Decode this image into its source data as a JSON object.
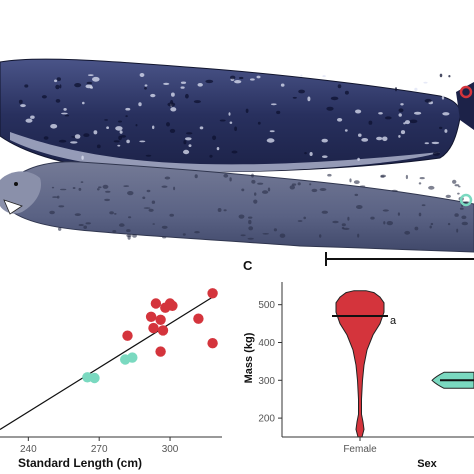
{
  "panels": {
    "c_label": "C",
    "male_symbol": "♂",
    "female_symbol": "♀"
  },
  "colors": {
    "female": "#d4343c",
    "male": "#7ad9c0",
    "seal_dark": "#2c3668",
    "seal_light": "#5c6688"
  },
  "chart_data": [
    {
      "type": "scatter",
      "xlabel": "Standard Length (cm)",
      "ylabel": "",
      "x_ticks": [
        240,
        270,
        300
      ],
      "xlim": [
        228,
        322
      ],
      "ylim": [
        150,
        560
      ],
      "series": [
        {
          "color": "#d4343c",
          "points": [
            [
              318,
              530
            ],
            [
              294,
              503
            ],
            [
              300,
              503
            ],
            [
              298,
              492
            ],
            [
              301,
              497
            ],
            [
              292,
              468
            ],
            [
              296,
              460
            ],
            [
              312,
              463
            ],
            [
              293,
              438
            ],
            [
              297,
              432
            ],
            [
              282,
              418
            ],
            [
              296,
              376
            ],
            [
              318,
              398
            ]
          ]
        },
        {
          "color": "#7ad9c0",
          "points": [
            [
              265,
              308
            ],
            [
              268,
              306
            ],
            [
              281,
              355
            ],
            [
              284,
              360
            ]
          ]
        }
      ],
      "trend_line": [
        [
          228,
          170
        ],
        [
          318,
          520
        ]
      ]
    },
    {
      "type": "violin",
      "ylabel": "Mass (kg)",
      "xlabel": "Sex",
      "categories": [
        "Female"
      ],
      "y_ticks": [
        200,
        300,
        400,
        500
      ],
      "ylim": [
        150,
        560
      ],
      "group_letter": "a",
      "female_median": 470,
      "male_median": 300,
      "female_profile": [
        [
          150,
          2
        ],
        [
          170,
          4
        ],
        [
          190,
          3
        ],
        [
          210,
          1.5
        ],
        [
          250,
          1.5
        ],
        [
          300,
          2.5
        ],
        [
          340,
          4
        ],
        [
          380,
          7
        ],
        [
          420,
          13
        ],
        [
          450,
          20
        ],
        [
          480,
          24
        ],
        [
          505,
          24
        ],
        [
          520,
          20
        ],
        [
          532,
          14
        ],
        [
          537,
          6
        ]
      ]
    }
  ]
}
